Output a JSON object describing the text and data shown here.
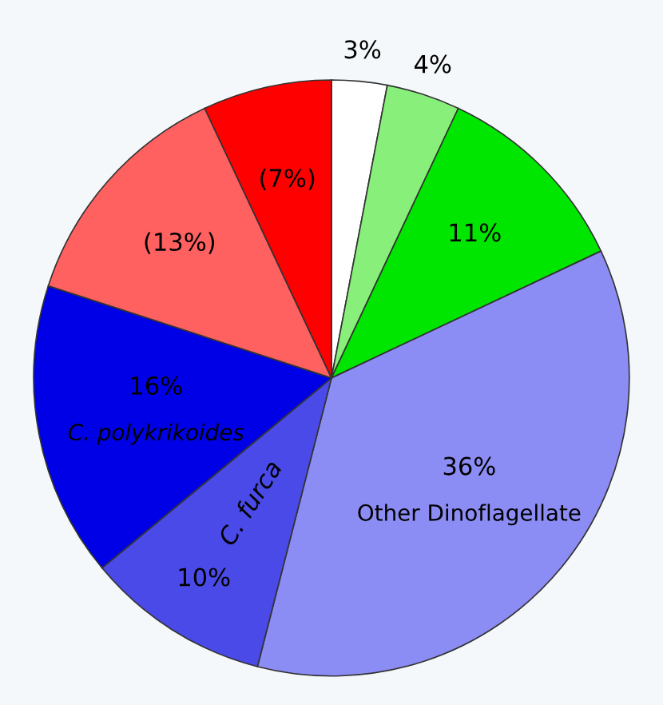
{
  "chart_data": {
    "type": "pie",
    "categories": [
      null,
      null,
      null,
      "Other Dinoflagellate",
      "C. furca",
      "C. polykrikoides",
      null,
      null
    ],
    "values": [
      3,
      4,
      11,
      36,
      10,
      16,
      13,
      7
    ],
    "value_labels": [
      "3%",
      "4%",
      "11%",
      "36%",
      "10%",
      "16%",
      "(13%)",
      "(7%)"
    ],
    "colors": [
      "#ffffff",
      "#88f07a",
      "#00e600",
      "#8c8cf5",
      "#4a4ae8",
      "#0000e6",
      "#ff6060",
      "#ff0000"
    ]
  }
}
